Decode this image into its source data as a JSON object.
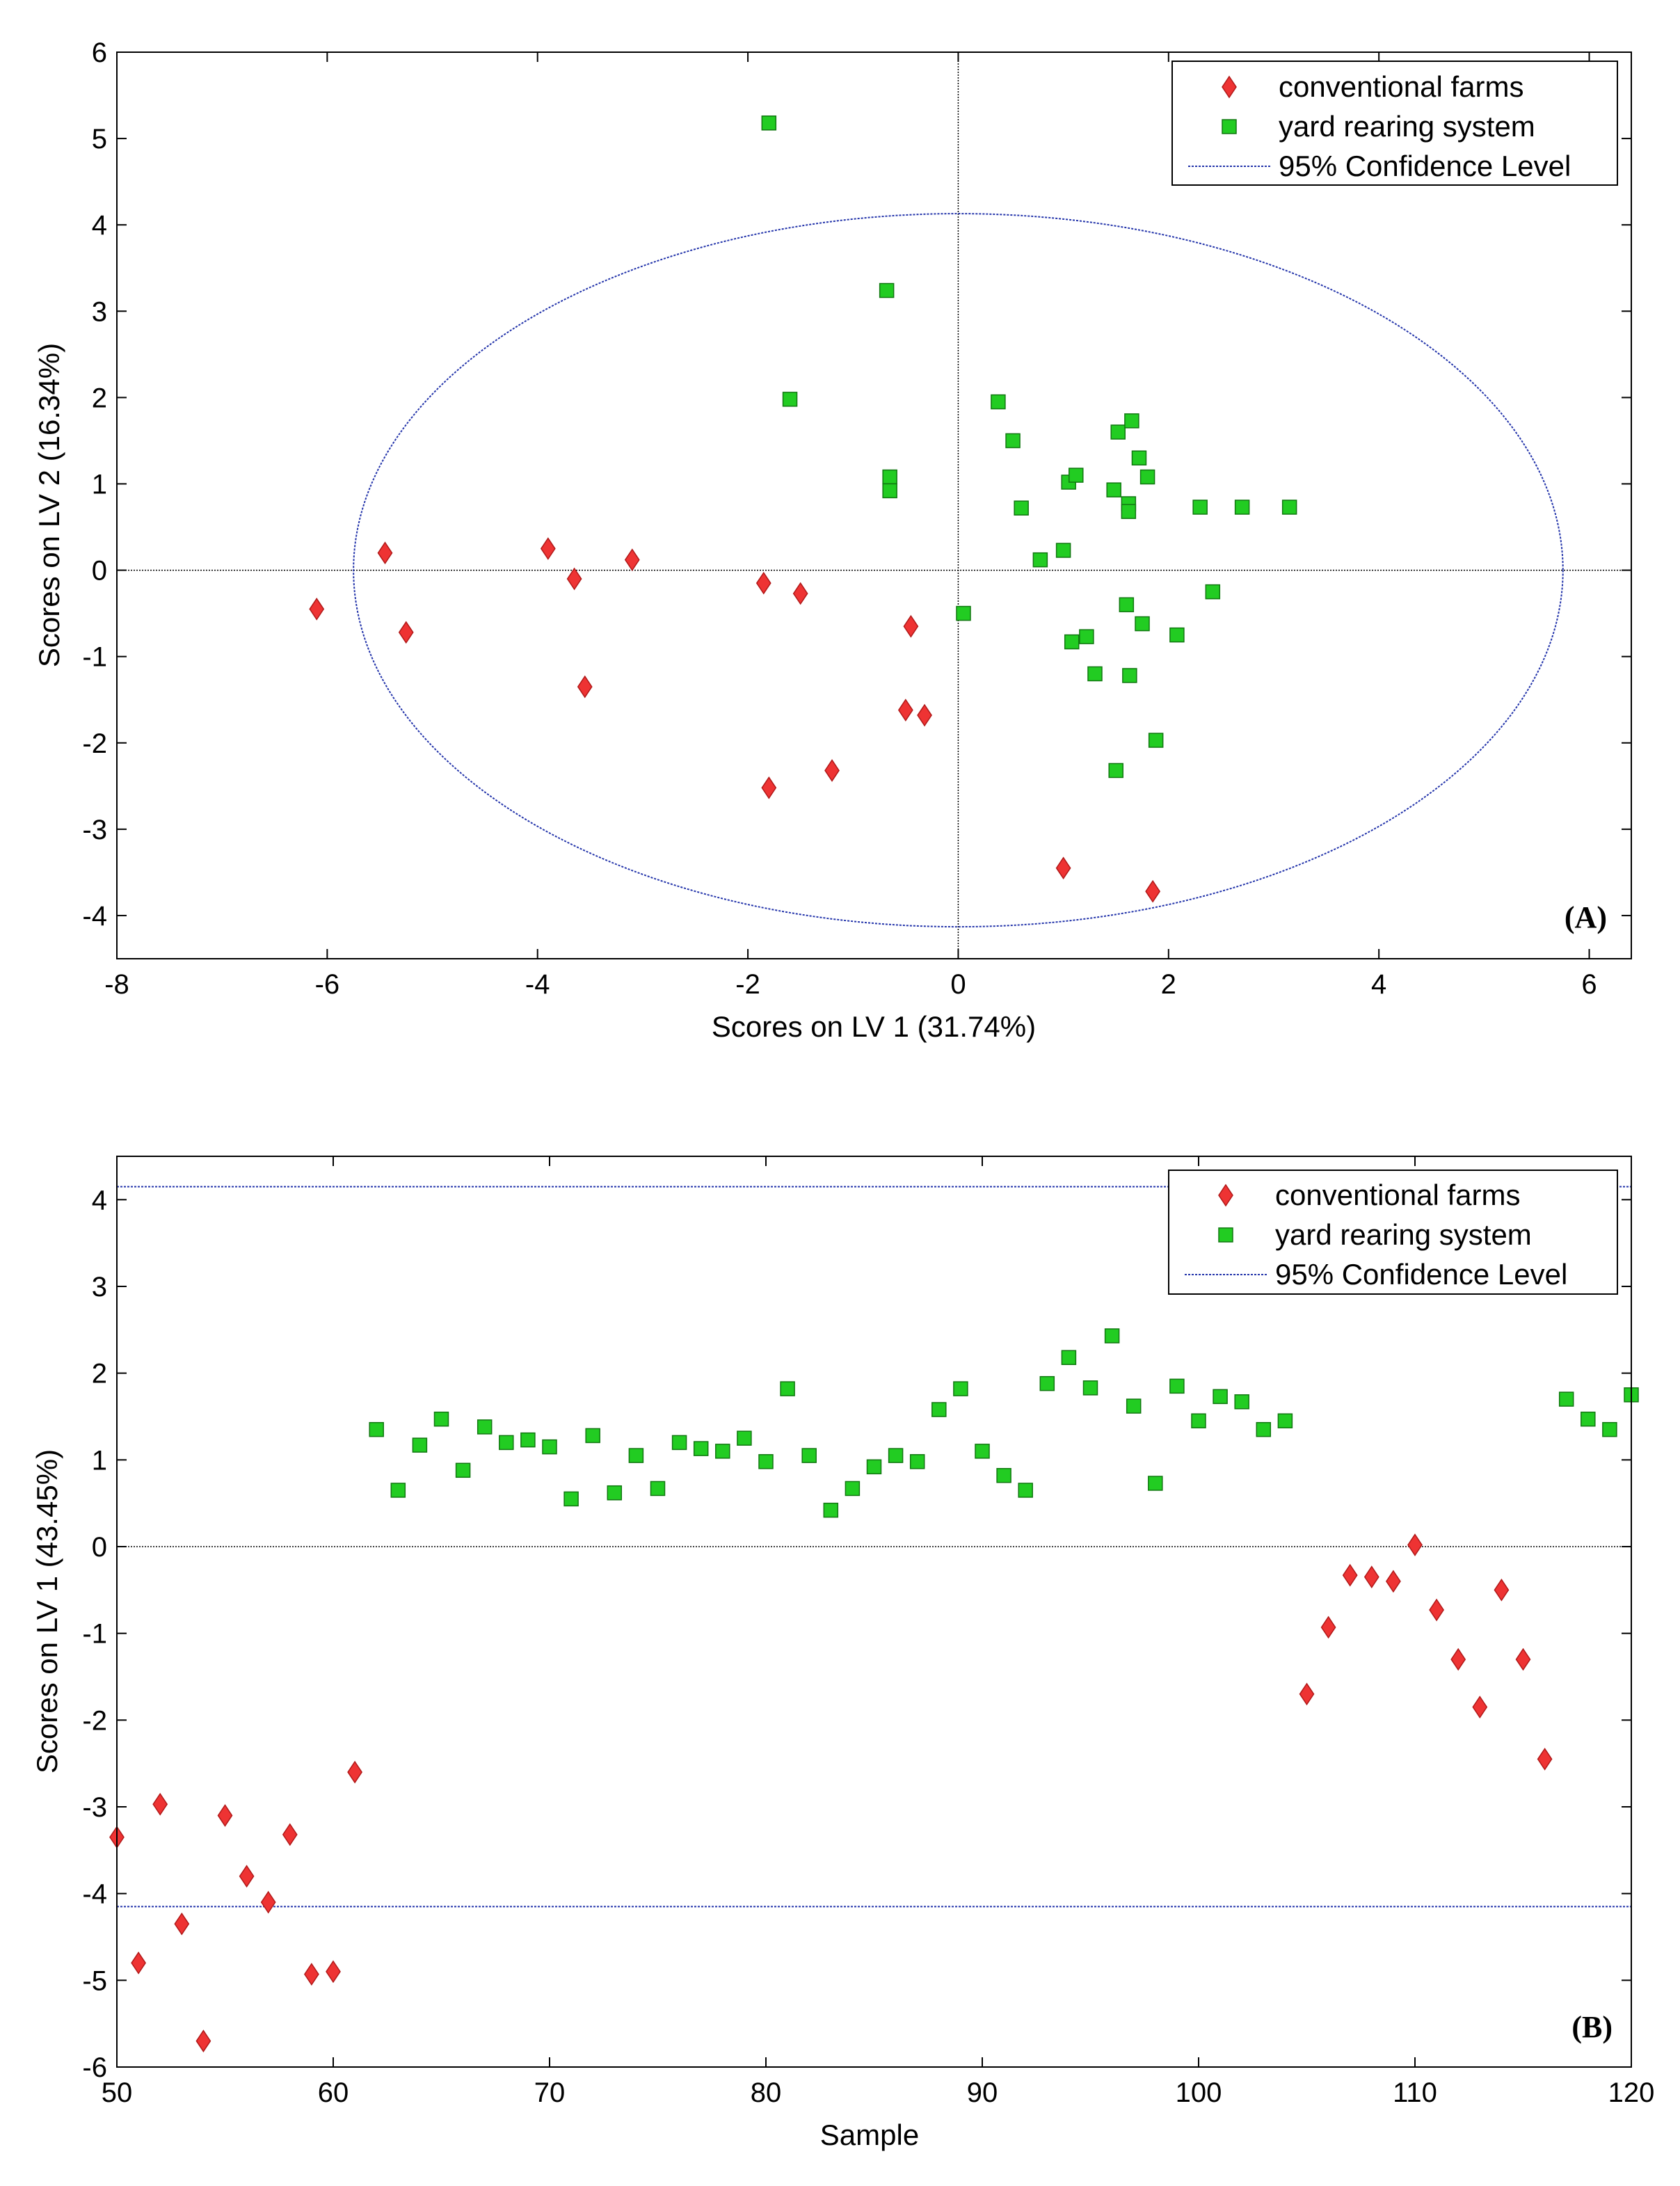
{
  "colors": {
    "conventional": "#ee3333",
    "yard": "#22cc22",
    "confidence": "#2233aa",
    "zero_line": "#000000"
  },
  "chart_data": [
    {
      "type": "scatter",
      "panel_label": "(A)",
      "xlabel": "Scores on LV 1 (31.74%)",
      "ylabel": "Scores on LV 2 (16.34%)",
      "xlim": [
        -8,
        6.4
      ],
      "ylim": [
        -4.5,
        6
      ],
      "xticks": [
        -8,
        -6,
        -4,
        -2,
        0,
        2,
        4,
        6
      ],
      "yticks": [
        -4,
        -3,
        -2,
        -1,
        0,
        1,
        2,
        3,
        4,
        5,
        6
      ],
      "grid": false,
      "legend_position": "top-right",
      "legend": [
        "conventional farms",
        "yard rearing system",
        "95% Confidence Level"
      ],
      "confidence_ellipse": {
        "center": [
          0,
          0
        ],
        "rx": 5.75,
        "ry": 4.13
      },
      "series": [
        {
          "name": "conventional farms",
          "marker": "diamond",
          "points": [
            [
              -6.1,
              -0.45
            ],
            [
              -5.45,
              0.2
            ],
            [
              -5.25,
              -0.72
            ],
            [
              -3.9,
              0.25
            ],
            [
              -3.65,
              -0.1
            ],
            [
              -3.55,
              -1.35
            ],
            [
              -3.1,
              0.12
            ],
            [
              -1.85,
              -0.15
            ],
            [
              -1.8,
              -2.52
            ],
            [
              -1.5,
              -0.27
            ],
            [
              -1.2,
              -2.32
            ],
            [
              -0.5,
              -1.62
            ],
            [
              -0.45,
              -0.65
            ],
            [
              -0.32,
              -1.68
            ],
            [
              1.0,
              -3.45
            ],
            [
              1.85,
              -3.72
            ]
          ]
        },
        {
          "name": "yard rearing system",
          "marker": "square",
          "points": [
            [
              -1.8,
              5.18
            ],
            [
              -0.68,
              3.24
            ],
            [
              -1.6,
              1.98
            ],
            [
              -0.65,
              1.08
            ],
            [
              -0.65,
              0.92
            ],
            [
              0.05,
              -0.5
            ],
            [
              0.38,
              1.95
            ],
            [
              0.52,
              1.5
            ],
            [
              0.6,
              0.72
            ],
            [
              0.78,
              0.12
            ],
            [
              1.0,
              0.23
            ],
            [
              1.05,
              1.02
            ],
            [
              1.08,
              -0.83
            ],
            [
              1.12,
              1.1
            ],
            [
              1.22,
              -0.77
            ],
            [
              1.3,
              -1.2
            ],
            [
              1.48,
              0.93
            ],
            [
              1.5,
              -2.32
            ],
            [
              1.52,
              1.6
            ],
            [
              1.6,
              -0.4
            ],
            [
              1.62,
              0.77
            ],
            [
              1.62,
              0.68
            ],
            [
              1.63,
              -1.22
            ],
            [
              1.65,
              1.73
            ],
            [
              1.72,
              1.3
            ],
            [
              1.75,
              -0.62
            ],
            [
              1.8,
              1.08
            ],
            [
              1.88,
              -1.97
            ],
            [
              2.08,
              -0.75
            ],
            [
              2.3,
              0.73
            ],
            [
              2.42,
              -0.25
            ],
            [
              2.7,
              0.73
            ],
            [
              3.15,
              0.73
            ]
          ]
        }
      ]
    },
    {
      "type": "scatter",
      "panel_label": "(B)",
      "xlabel": "Sample",
      "ylabel": "Scores on LV 1 (43.45%)",
      "xlim": [
        50,
        120
      ],
      "ylim": [
        -6,
        4.5
      ],
      "xticks": [
        50,
        60,
        70,
        80,
        90,
        100,
        110,
        120
      ],
      "yticks": [
        -6,
        -5,
        -4,
        -3,
        -2,
        -1,
        0,
        1,
        2,
        3,
        4
      ],
      "grid": false,
      "legend_position": "top-right",
      "legend": [
        "conventional farms",
        "yard rearing system",
        "95% Confidence Level"
      ],
      "confidence_limits": [
        4.15,
        -4.15
      ],
      "series": [
        {
          "name": "conventional farms",
          "marker": "diamond",
          "points": [
            [
              50,
              -3.35
            ],
            [
              51,
              -4.8
            ],
            [
              52,
              -2.97
            ],
            [
              53,
              -4.35
            ],
            [
              54,
              -5.7
            ],
            [
              55,
              -3.1
            ],
            [
              56,
              -3.8
            ],
            [
              57,
              -4.1
            ],
            [
              58,
              -3.32
            ],
            [
              59,
              -4.93
            ],
            [
              60,
              -4.9
            ],
            [
              61,
              -2.6
            ],
            [
              105,
              -1.7
            ],
            [
              106,
              -0.93
            ],
            [
              107,
              -0.33
            ],
            [
              108,
              -0.35
            ],
            [
              109,
              -0.4
            ],
            [
              110,
              0.02
            ],
            [
              111,
              -0.73
            ],
            [
              112,
              -1.3
            ],
            [
              113,
              -1.85
            ],
            [
              114,
              -0.5
            ],
            [
              115,
              -1.3
            ],
            [
              116,
              -2.45
            ]
          ]
        },
        {
          "name": "yard rearing system",
          "marker": "square",
          "points": [
            [
              62,
              1.35
            ],
            [
              63,
              0.65
            ],
            [
              64,
              1.17
            ],
            [
              65,
              1.47
            ],
            [
              66,
              0.88
            ],
            [
              67,
              1.38
            ],
            [
              68,
              1.2
            ],
            [
              69,
              1.23
            ],
            [
              70,
              1.15
            ],
            [
              71,
              0.55
            ],
            [
              72,
              1.28
            ],
            [
              73,
              0.62
            ],
            [
              74,
              1.05
            ],
            [
              75,
              0.67
            ],
            [
              76,
              1.2
            ],
            [
              77,
              1.13
            ],
            [
              78,
              1.1
            ],
            [
              79,
              1.25
            ],
            [
              80,
              0.98
            ],
            [
              81,
              1.82
            ],
            [
              82,
              1.05
            ],
            [
              83,
              0.42
            ],
            [
              84,
              0.67
            ],
            [
              85,
              0.92
            ],
            [
              86,
              1.05
            ],
            [
              87,
              0.98
            ],
            [
              88,
              1.58
            ],
            [
              89,
              1.82
            ],
            [
              90,
              1.1
            ],
            [
              91,
              0.82
            ],
            [
              92,
              0.65
            ],
            [
              93,
              1.88
            ],
            [
              94,
              2.18
            ],
            [
              95,
              1.83
            ],
            [
              96,
              2.43
            ],
            [
              97,
              1.62
            ],
            [
              98,
              0.73
            ],
            [
              99,
              1.85
            ],
            [
              100,
              1.45
            ],
            [
              101,
              1.73
            ],
            [
              102,
              1.67
            ],
            [
              103,
              1.35
            ],
            [
              104,
              1.45
            ],
            [
              117,
              1.7
            ],
            [
              118,
              1.47
            ],
            [
              119,
              1.35
            ],
            [
              120,
              1.75
            ]
          ]
        }
      ]
    }
  ]
}
